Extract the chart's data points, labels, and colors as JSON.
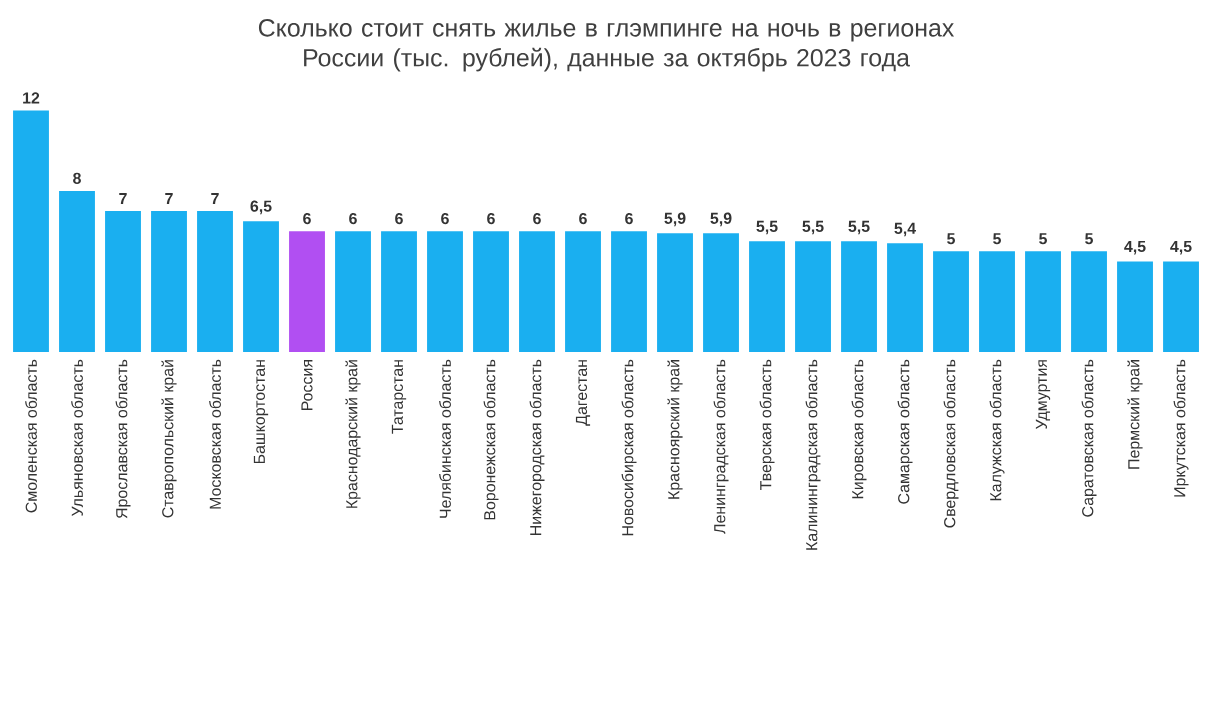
{
  "chart_data": {
    "type": "bar",
    "title": "Сколько стоит снять жилье в глэмпинге на ночь в регионах России (тыс. рублей), данные за октябрь 2023 года",
    "categories": [
      "Смоленская область",
      "Ульяновская область",
      "Ярославская область",
      "Ставропольский край",
      "Московская область",
      "Башкортостан",
      "Россия",
      "Краснодарский край",
      "Татарстан",
      "Челябинская область",
      "Воронежская область",
      "Нижегородская область",
      "Дагестан",
      "Новосибирская область",
      "Красноярский край",
      "Ленинградская область",
      "Тверская область",
      "Калининградская область",
      "Кировская область",
      "Самарская область",
      "Свердловская область",
      "Калужская область",
      "Удмуртия",
      "Саратовская область",
      "Пермский край",
      "Иркутская область"
    ],
    "values": [
      12,
      8,
      7,
      7,
      7,
      6.5,
      6,
      6,
      6,
      6,
      6,
      6,
      6,
      6,
      5.9,
      5.9,
      5.5,
      5.5,
      5.5,
      5.4,
      5,
      5,
      5,
      5,
      4.5,
      4.5
    ],
    "value_labels": [
      "12",
      "8",
      "7",
      "7",
      "7",
      "6,5",
      "6",
      "6",
      "6",
      "6",
      "6",
      "6",
      "6",
      "6",
      "5,9",
      "5,9",
      "5,5",
      "5,5",
      "5,5",
      "5,4",
      "5",
      "5",
      "5",
      "5",
      "4,5",
      "4,5"
    ],
    "colors": [
      "#1aaff0",
      "#1aaff0",
      "#1aaff0",
      "#1aaff0",
      "#1aaff0",
      "#1aaff0",
      "#b14ff2",
      "#1aaff0",
      "#1aaff0",
      "#1aaff0",
      "#1aaff0",
      "#1aaff0",
      "#1aaff0",
      "#1aaff0",
      "#1aaff0",
      "#1aaff0",
      "#1aaff0",
      "#1aaff0",
      "#1aaff0",
      "#1aaff0",
      "#1aaff0",
      "#1aaff0",
      "#1aaff0",
      "#1aaff0",
      "#1aaff0",
      "#1aaff0"
    ]
  }
}
